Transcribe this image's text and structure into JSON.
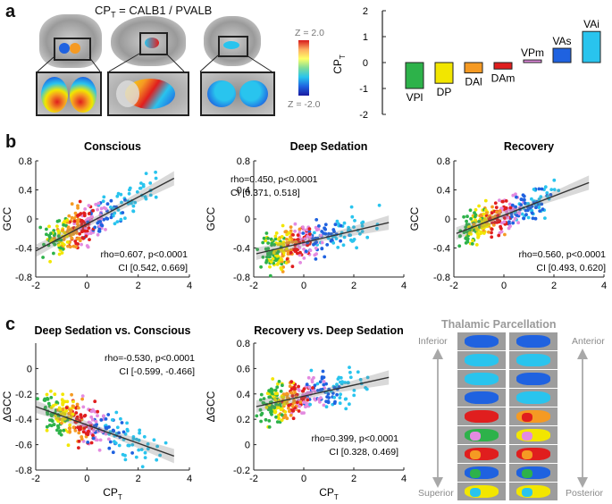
{
  "panel_labels": {
    "a": "a",
    "b": "b",
    "c": "c"
  },
  "figure_a": {
    "title": "CP",
    "title_sub": "T",
    "title_rest": " = CALB1 / PVALB",
    "colorbar": {
      "top_label": "Z = 2.0",
      "bottom_label": "Z = -2.0"
    }
  },
  "parcellation": {
    "title": "Thalamic Parcellation",
    "inferior": "Inferior",
    "superior": "Superior",
    "anterior": "Anterior",
    "posterior": "Posterior"
  },
  "nucleus_colors": {
    "VPl": "#2db24a",
    "DP": "#f2e600",
    "DAl": "#f59a23",
    "DAm": "#e01e1e",
    "VPm": "#e38be0",
    "VAs": "#1f62e0",
    "VAi": "#29c4ee"
  },
  "chart_data": [
    {
      "id": "bar",
      "type": "bar",
      "ylabel": "CP",
      "ylabel_sub": "T",
      "ylim": [
        -2,
        2
      ],
      "yticks": [
        "2",
        "1",
        "0",
        "-1",
        "-2"
      ],
      "categories": [
        "VPl",
        "DP",
        "DAl",
        "DAm",
        "VPm",
        "VAs",
        "VAi"
      ],
      "values": [
        -1.0,
        -0.8,
        -0.4,
        -0.25,
        0.1,
        0.55,
        1.2
      ],
      "colors": [
        "#2db24a",
        "#f2e600",
        "#f59a23",
        "#e01e1e",
        "#e38be0",
        "#1f62e0",
        "#29c4ee"
      ]
    },
    {
      "id": "b1",
      "type": "scatter",
      "title": "Conscious",
      "xlabel": "CP",
      "xlabel_sub": "T",
      "ylabel": "GCC",
      "xlim": [
        -2,
        4
      ],
      "ylim": [
        -0.8,
        0.8
      ],
      "xticks": [
        "-2",
        "0",
        "2",
        "4"
      ],
      "yticks": [
        "0.8",
        "0.4",
        "0",
        "-0.4",
        "-0.8"
      ],
      "stats": [
        "rho=0.607, p<0.0001",
        "CI [0.542, 0.669]"
      ],
      "fit": {
        "x": [
          -2,
          3.4
        ],
        "y": [
          -0.44,
          0.56
        ]
      },
      "seed": 11,
      "slope": 0.18,
      "intercept": -0.06,
      "noise": 0.2
    },
    {
      "id": "b2",
      "type": "scatter",
      "title": "Deep Sedation",
      "xlabel": "CP",
      "xlabel_sub": "T",
      "ylabel": "GCC",
      "xlim": [
        -2,
        4
      ],
      "ylim": [
        -0.8,
        0.8
      ],
      "xticks": [
        "-2",
        "0",
        "2",
        "4"
      ],
      "yticks": [
        "0.8",
        "0.4",
        "0",
        "-0.4",
        "-0.8"
      ],
      "stats": [
        "rho=0.450, p<0.0001",
        "CI [0.371, 0.518]"
      ],
      "fit": {
        "x": [
          -1.9,
          3.4
        ],
        "y": [
          -0.48,
          -0.05
        ]
      },
      "seed": 23,
      "slope": 0.09,
      "intercept": -0.33,
      "noise": 0.19
    },
    {
      "id": "b3",
      "type": "scatter",
      "title": "Recovery",
      "xlabel": "CP",
      "xlabel_sub": "T",
      "ylabel": "GCC",
      "xlim": [
        -2,
        4
      ],
      "ylim": [
        -0.8,
        0.8
      ],
      "xticks": [
        "-2",
        "0",
        "2",
        "4"
      ],
      "yticks": [
        "0.8",
        "0.4",
        "0",
        "-0.4",
        "-0.8"
      ],
      "stats": [
        "rho=0.560, p<0.0001",
        "CI [0.493, 0.620]"
      ],
      "fit": {
        "x": [
          -1.9,
          3.4
        ],
        "y": [
          -0.2,
          0.5
        ]
      },
      "seed": 37,
      "slope": 0.13,
      "intercept": 0.05,
      "noise": 0.19
    },
    {
      "id": "c1",
      "type": "scatter",
      "title": "Deep Sedation vs. Conscious",
      "xlabel": "CP",
      "xlabel_sub": "T",
      "ylabel": "ΔGCC",
      "xlim": [
        -2,
        4
      ],
      "ylim": [
        -0.8,
        0.2
      ],
      "xticks": [
        "-2",
        "0",
        "2",
        "4"
      ],
      "yticks": [
        "0",
        "-0.2",
        "-0.4",
        "-0.6",
        "-0.8"
      ],
      "stats": [
        "rho=-0.530, p<0.0001",
        "CI [-0.599, -0.466]"
      ],
      "fit": {
        "x": [
          -2,
          3.4
        ],
        "y": [
          -0.3,
          -0.69
        ]
      },
      "seed": 51,
      "slope": -0.07,
      "intercept": -0.44,
      "noise": 0.13
    },
    {
      "id": "c2",
      "type": "scatter",
      "title": "Recovery vs. Deep Sedation",
      "xlabel": "CP",
      "xlabel_sub": "T",
      "ylabel": "ΔGCC",
      "xlim": [
        -2,
        4
      ],
      "ylim": [
        -0.2,
        0.8
      ],
      "xticks": [
        "-2",
        "0",
        "2",
        "4"
      ],
      "yticks": [
        "0.8",
        "0.6",
        "0.4",
        "0.2",
        "0",
        "-0.2"
      ],
      "stats": [
        "rho=0.399, p<0.0001",
        "CI [0.328, 0.469]"
      ],
      "fit": {
        "x": [
          -1.9,
          3.4
        ],
        "y": [
          0.3,
          0.53
        ]
      },
      "seed": 67,
      "slope": 0.045,
      "intercept": 0.38,
      "noise": 0.11
    }
  ]
}
